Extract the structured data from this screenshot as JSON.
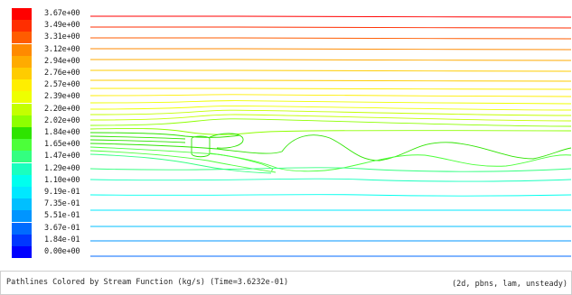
{
  "legend": {
    "entries": [
      {
        "label": "3.67e+00",
        "color": "#ff0000"
      },
      {
        "label": "3.49e+00",
        "color": "#ff2e00"
      },
      {
        "label": "3.31e+00",
        "color": "#ff5c00"
      },
      {
        "label": "3.12e+00",
        "color": "#ff8a00"
      },
      {
        "label": "2.94e+00",
        "color": "#ffab00"
      },
      {
        "label": "2.76e+00",
        "color": "#ffcc00"
      },
      {
        "label": "2.57e+00",
        "color": "#ffee00"
      },
      {
        "label": "2.39e+00",
        "color": "#eeff00"
      },
      {
        "label": "2.20e+00",
        "color": "#c4ff00"
      },
      {
        "label": "2.02e+00",
        "color": "#8eff00"
      },
      {
        "label": "1.84e+00",
        "color": "#2ee400"
      },
      {
        "label": "1.65e+00",
        "color": "#4cff3a"
      },
      {
        "label": "1.47e+00",
        "color": "#33ff80"
      },
      {
        "label": "1.29e+00",
        "color": "#1affbf"
      },
      {
        "label": "1.10e+00",
        "color": "#00ffee"
      },
      {
        "label": "9.19e-01",
        "color": "#00e8ff"
      },
      {
        "label": "7.35e-01",
        "color": "#00bfff"
      },
      {
        "label": "5.51e-01",
        "color": "#0095ff"
      },
      {
        "label": "3.67e-01",
        "color": "#006bff"
      },
      {
        "label": "1.84e-01",
        "color": "#0037ff"
      },
      {
        "label": "0.00e+00",
        "color": "#0000ff"
      }
    ]
  },
  "caption": {
    "left": "Pathlines Colored by Stream Function (kg/s)  (Time=3.6232e-01)",
    "right": "(2d, pbns, lam, unsteady)"
  }
}
